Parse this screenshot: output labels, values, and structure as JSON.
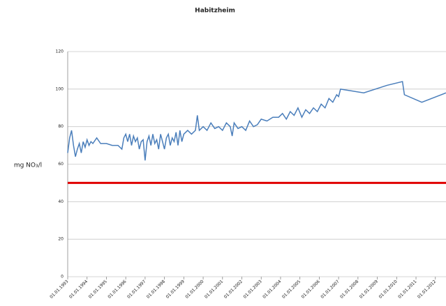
{
  "chart_data": {
    "type": "line",
    "title": "Habitzheim",
    "y_label": "mg NO₃/l",
    "x": [
      1993.0,
      1993.1,
      1993.2,
      1993.3,
      1993.4,
      1993.5,
      1993.6,
      1993.7,
      1993.8,
      1993.9,
      1994.0,
      1994.1,
      1994.2,
      1994.3,
      1994.5,
      1994.7,
      1995.0,
      1995.3,
      1995.6,
      1995.8,
      1995.9,
      1996.0,
      1996.1,
      1996.2,
      1996.3,
      1996.4,
      1996.5,
      1996.6,
      1996.7,
      1996.8,
      1996.9,
      1997.0,
      1997.1,
      1997.2,
      1997.3,
      1997.4,
      1997.5,
      1997.6,
      1997.7,
      1997.8,
      1997.9,
      1998.0,
      1998.1,
      1998.2,
      1998.3,
      1998.4,
      1998.5,
      1998.6,
      1998.7,
      1998.8,
      1998.9,
      1999.0,
      1999.2,
      1999.4,
      1999.6,
      1999.7,
      1999.8,
      2000.0,
      2000.2,
      2000.4,
      2000.6,
      2000.8,
      2001.0,
      2001.2,
      2001.4,
      2001.5,
      2001.6,
      2001.8,
      2002.0,
      2002.2,
      2002.4,
      2002.6,
      2002.8,
      2003.0,
      2003.3,
      2003.6,
      2003.9,
      2004.1,
      2004.3,
      2004.5,
      2004.7,
      2004.9,
      2005.1,
      2005.3,
      2005.5,
      2005.7,
      2005.9,
      2006.1,
      2006.3,
      2006.5,
      2006.7,
      2006.9,
      2007.0,
      2007.1,
      2008.3,
      2009.5,
      2010.3,
      2010.4,
      2011.3,
      2012.55
    ],
    "series": [
      {
        "name": "Habitzheim",
        "color": "#4a7ebb",
        "values": [
          66,
          74,
          78,
          70,
          64,
          68,
          71,
          66,
          72,
          69,
          73,
          70,
          72,
          71,
          74,
          71,
          71,
          70,
          70,
          68,
          74,
          76,
          72,
          76,
          70,
          75,
          72,
          74,
          68,
          72,
          73,
          62,
          72,
          75,
          70,
          76,
          71,
          73,
          68,
          76,
          72,
          68,
          74,
          76,
          70,
          74,
          72,
          77,
          70,
          78,
          72,
          76,
          78,
          76,
          78,
          86,
          78,
          80,
          78,
          82,
          79,
          80,
          78,
          82,
          80,
          75,
          82,
          79,
          80,
          78,
          83,
          80,
          81,
          84,
          83,
          85,
          85,
          87,
          84,
          88,
          86,
          90,
          85,
          89,
          87,
          90,
          88,
          92,
          90,
          95,
          93,
          97,
          96,
          100,
          98,
          102,
          104,
          97,
          93,
          98
        ]
      }
    ],
    "threshold": {
      "value": 50,
      "color": "#e00000"
    },
    "xlim": [
      1993,
      2012.55
    ],
    "xticks": [
      {
        "value": 1993,
        "label": "01.01.1993"
      },
      {
        "value": 1994,
        "label": "01.01.1994"
      },
      {
        "value": 1995,
        "label": "01.01.1995"
      },
      {
        "value": 1996,
        "label": "01.01.1996"
      },
      {
        "value": 1997,
        "label": "01.01.1997"
      },
      {
        "value": 1998,
        "label": "01.01.1998"
      },
      {
        "value": 1999,
        "label": "01.01.1999"
      },
      {
        "value": 2000,
        "label": "01.01.2000"
      },
      {
        "value": 2001,
        "label": "01.01.2001"
      },
      {
        "value": 2002,
        "label": "01.01.2002"
      },
      {
        "value": 2003,
        "label": "01.01.2003"
      },
      {
        "value": 2004,
        "label": "01.01.2004"
      },
      {
        "value": 2005,
        "label": "01.01.2005"
      },
      {
        "value": 2006,
        "label": "01.01.2006"
      },
      {
        "value": 2007,
        "label": "01.01.2007"
      },
      {
        "value": 2008,
        "label": "01.01.2008"
      },
      {
        "value": 2009,
        "label": "01.01.2009"
      },
      {
        "value": 2010,
        "label": "01.01.2010"
      },
      {
        "value": 2011,
        "label": "01.01.2011"
      },
      {
        "value": 2012,
        "label": "01.01.2012"
      }
    ],
    "ylim": [
      0,
      120
    ],
    "yticks": [
      0,
      20,
      40,
      60,
      80,
      100,
      120
    ],
    "grid": true
  }
}
